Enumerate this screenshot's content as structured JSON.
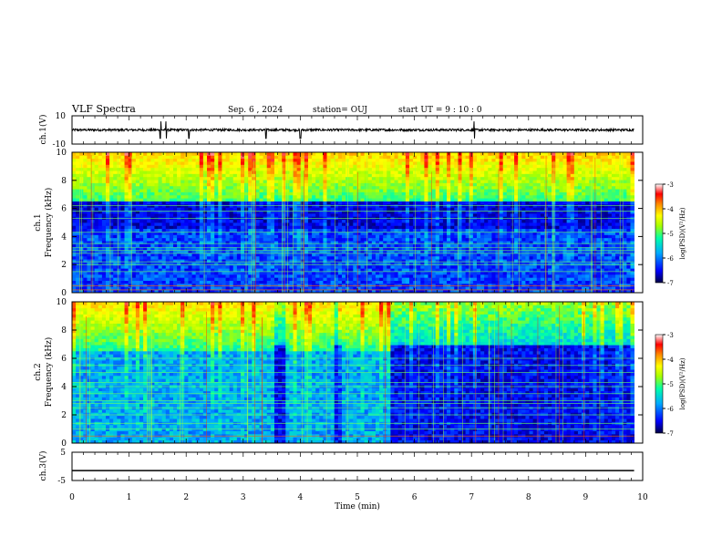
{
  "header": {
    "title": "VLF Spectra",
    "date": "Sep. 6 , 2024",
    "station": "station= OUJ",
    "start_ut": "start UT =  9 : 10 : 0"
  },
  "colors": {
    "background": "#ffffff",
    "axes": "#000000",
    "colormap": [
      "#000044",
      "#0000ff",
      "#00aaff",
      "#00ffaa",
      "#aaff00",
      "#ffff00",
      "#ff8800",
      "#ff0000",
      "#ffffff"
    ]
  },
  "chart_data": [
    {
      "id": "ch1-waveform",
      "type": "line",
      "ylabel": "ch.1(V)",
      "ylim": [
        -10,
        10
      ],
      "yticks": [
        "10",
        "-10"
      ],
      "xlim": [
        0,
        10
      ],
      "series": [
        {
          "values_description_free": true,
          "mean": 0,
          "amplitude": 0.8,
          "spikes": [
            1.55,
            1.65,
            2.05,
            3.4,
            4.0,
            7.05
          ]
        }
      ]
    },
    {
      "id": "ch1-spectrogram",
      "type": "heatmap",
      "ylabel": "ch.1 Frequency (kHz)",
      "ylim": [
        0,
        10
      ],
      "yticks": [
        "0",
        "2",
        "4",
        "6",
        "8",
        "10"
      ],
      "xlim": [
        0,
        10
      ],
      "data_end_min": 9.85,
      "colorbar": {
        "label": "log(PSD)(V²/Hz)",
        "range": [
          -7,
          -3
        ],
        "ticks": [
          "-3",
          "-4",
          "-5",
          "-6",
          "-7"
        ]
      },
      "noise_floor_khz": 6.5,
      "hum_lines_khz": [
        0.2,
        0.5,
        1.5,
        2.0,
        2.2,
        2.8,
        3.0,
        3.2,
        3.5,
        4.3,
        5.3,
        5.8,
        6.2
      ]
    },
    {
      "id": "ch2-spectrogram",
      "type": "heatmap",
      "ylabel": "ch.2 Frequency (kHz)",
      "ylim": [
        0,
        10
      ],
      "yticks": [
        "0",
        "2",
        "4",
        "6",
        "8",
        "10"
      ],
      "xlim": [
        0,
        10
      ],
      "data_end_min": 9.85,
      "colorbar": {
        "label": "log(PSD)(V²/Hz)",
        "range": [
          -7,
          -3
        ],
        "ticks": [
          "-3",
          "-4",
          "-5",
          "-6",
          "-7"
        ]
      },
      "segments": [
        {
          "from": 0,
          "to": 3.55,
          "level": "high"
        },
        {
          "from": 3.55,
          "to": 3.75,
          "level": "low"
        },
        {
          "from": 3.75,
          "to": 4.6,
          "level": "high"
        },
        {
          "from": 4.6,
          "to": 4.75,
          "level": "low"
        },
        {
          "from": 4.75,
          "to": 5.6,
          "level": "high"
        },
        {
          "from": 5.6,
          "to": 9.85,
          "level": "low"
        }
      ],
      "hum_lines_khz": [
        0.5,
        1.0,
        1.4,
        2.0,
        2.5,
        2.8,
        3.0,
        3.5,
        4.0,
        4.3,
        5.0,
        5.5,
        6.0
      ]
    },
    {
      "id": "ch3-waveform",
      "type": "line",
      "ylabel": "ch.3(V)",
      "ylim": [
        -5,
        5
      ],
      "yticks": [
        "5",
        "-5"
      ],
      "xlim": [
        0,
        10
      ],
      "series": [
        {
          "constant": -1.5
        }
      ]
    }
  ],
  "xaxis": {
    "label": "Time (min)",
    "ticks": [
      "0",
      "1",
      "2",
      "3",
      "4",
      "5",
      "6",
      "7",
      "8",
      "9",
      "10"
    ],
    "range": [
      0,
      10
    ]
  }
}
